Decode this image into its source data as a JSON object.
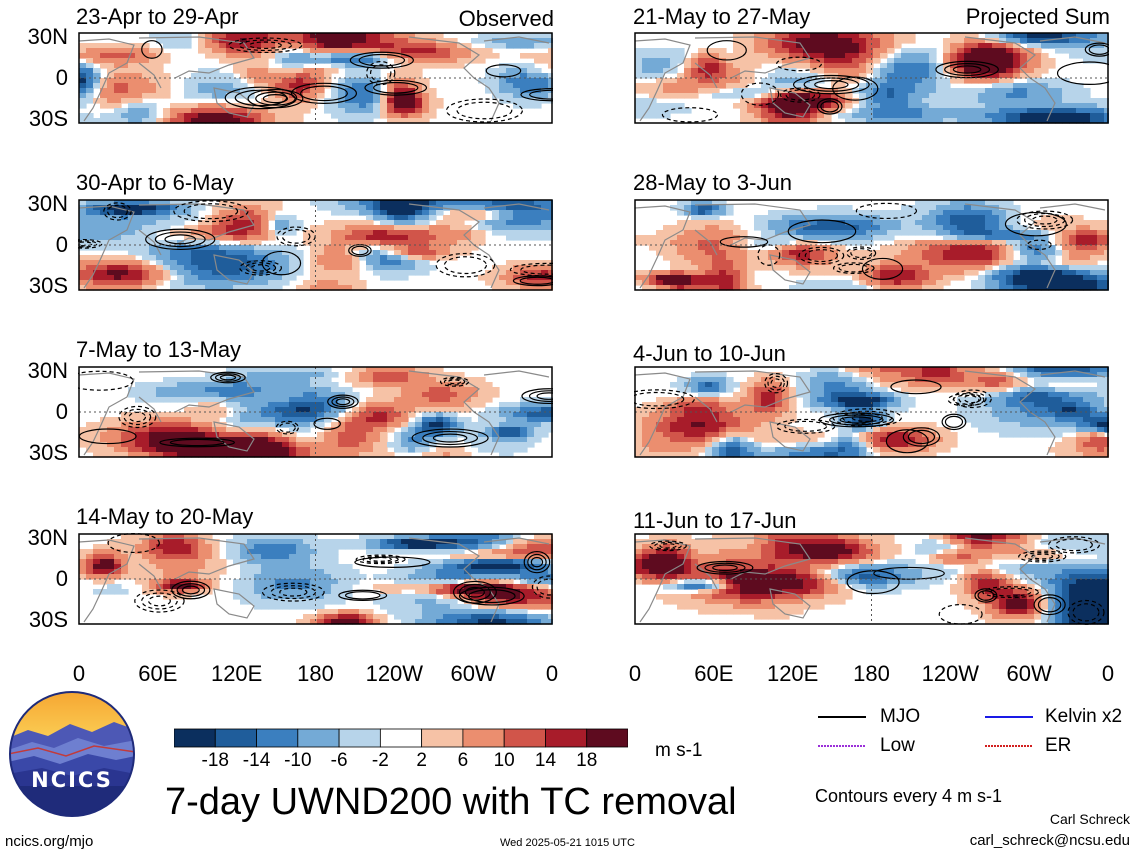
{
  "panels": [
    {
      "id": "p1",
      "title": "23-Apr to 29-Apr",
      "label": "Observed"
    },
    {
      "id": "p2",
      "title": "30-Apr to 6-May",
      "label": ""
    },
    {
      "id": "p3",
      "title": "7-May to 13-May",
      "label": ""
    },
    {
      "id": "p4",
      "title": "14-May to 20-May",
      "label": ""
    },
    {
      "id": "p5",
      "title": "21-May to 27-May",
      "label": "Projected Sum"
    },
    {
      "id": "p6",
      "title": "28-May to 3-Jun",
      "label": ""
    },
    {
      "id": "p7",
      "title": "4-Jun to 10-Jun",
      "label": ""
    },
    {
      "id": "p8",
      "title": "11-Jun to 17-Jun",
      "label": ""
    }
  ],
  "y_ticks": [
    "30N",
    "0",
    "30S"
  ],
  "x_ticks": [
    "0",
    "60E",
    "120E",
    "180",
    "120W",
    "60W",
    "0"
  ],
  "colorbar": {
    "labels": [
      "-18",
      "-14",
      "-10",
      "-6",
      "-2",
      "2",
      "6",
      "10",
      "14",
      "18"
    ],
    "colors": [
      "#0b2f5e",
      "#1f5d9b",
      "#3b7fbf",
      "#74aad6",
      "#b7d4ea",
      "#ffffff",
      "#f6c2a6",
      "#eb8e6f",
      "#d1554a",
      "#a81c2a",
      "#5e0b1f"
    ],
    "units": "m s-1"
  },
  "legend": {
    "items": [
      {
        "name": "MJO",
        "color": "#000000"
      },
      {
        "name": "Kelvin x2",
        "color": "#1a1ae6"
      },
      {
        "name": "Low",
        "color": "#9b30d9"
      },
      {
        "name": "ER",
        "color": "#d22020"
      }
    ],
    "contours_note": "Contours every 4 m s-1"
  },
  "logo": {
    "text": "NCICS"
  },
  "title": "7-day UWND200 with TC removal",
  "footer": {
    "url": "ncics.org/mjo",
    "timestamp": "Wed 2025-05-21 1015 UTC",
    "author": "Carl Schreck",
    "email": "carl_schreck@ncsu.edu"
  }
}
